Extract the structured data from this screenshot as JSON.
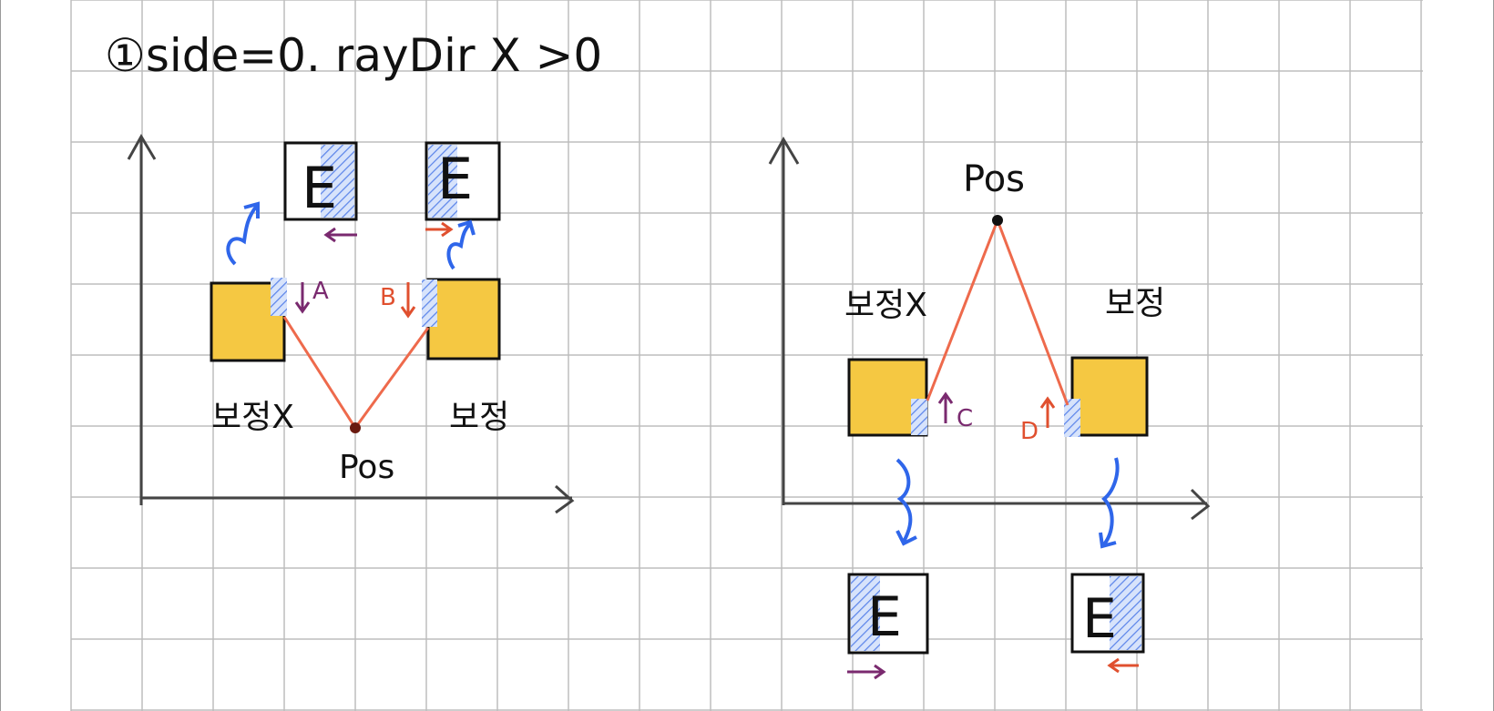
{
  "title": "①side=0.  rayDir X  >0",
  "colors": {
    "grid": "#bdbdbd",
    "axis": "#444444",
    "wall": "#f5c842",
    "ray": "#ee6a4c",
    "hatch": "#3d6fe0",
    "arrow_blue": "#2f66ea",
    "arrow_purple": "#7a2a6f",
    "arrow_red": "#e0502f"
  },
  "left_diagram": {
    "pos_label": "Pos",
    "left_block_label": "보정X",
    "right_block_label": "보정",
    "top_left_box": "E",
    "top_right_box": "E",
    "mark_a": "A",
    "mark_b": "B"
  },
  "right_diagram": {
    "pos_label": "Pos",
    "left_block_label": "보정X",
    "right_block_label": "보정",
    "bottom_left_box": "E",
    "bottom_right_box": "E",
    "mark_c": "C",
    "mark_d": "D"
  }
}
